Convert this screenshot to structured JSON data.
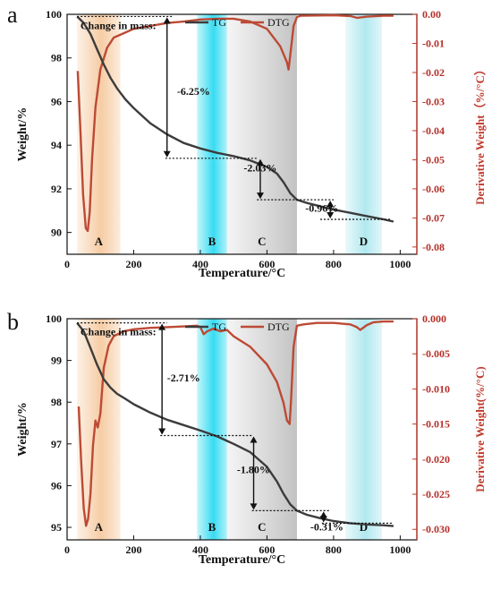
{
  "colors": {
    "tg": "#3c3c3c",
    "dtg": "#bd4a35",
    "right_axis": "#c0392b",
    "region_a": "#f5c79b",
    "region_b": "#21d8f0",
    "region_c": "#bcbcbc",
    "region_d": "#a9e6ee"
  },
  "chart_data": [
    {
      "type": "line",
      "panel_label": "a",
      "xlabel": "Temperature/°C",
      "ylabel": "Weight/%",
      "y2label": "Derivative Weight（%/°C）",
      "xlim": [
        0,
        1050
      ],
      "ylim": [
        89,
        100
      ],
      "y2lim": [
        -0.0825,
        0
      ],
      "x_ticks": [
        "0",
        "200",
        "400",
        "600",
        "800",
        "1000"
      ],
      "y_ticks": [
        "90",
        "92",
        "94",
        "96",
        "98",
        "100"
      ],
      "y2_ticks": [
        "0.00",
        "-0.01",
        "-0.02",
        "-0.03",
        "-0.04",
        "-0.05",
        "-0.06",
        "-0.07",
        "-0.08"
      ],
      "legend": {
        "tg": "TG",
        "dtg": "DTG"
      },
      "change_label": "Change in mass:",
      "regions": [
        {
          "label": "A",
          "from": 30,
          "to": 160
        },
        {
          "label": "B",
          "from": 390,
          "to": 480
        },
        {
          "label": "C",
          "from": 480,
          "to": 690
        },
        {
          "label": "D",
          "from": 835,
          "to": 945
        }
      ],
      "annotations": [
        {
          "text": "-6.25%",
          "x": 300,
          "from": 99.9,
          "to": 93.4,
          "line_x1": 295,
          "line_x2": 570,
          "tx": 330,
          "ty": 96.3
        },
        {
          "text": "-2.03%",
          "x": 580,
          "from": 93.4,
          "to": 91.5,
          "line_x1": 570,
          "line_x2": 800,
          "tx": 530,
          "ty": 92.8
        },
        {
          "text": "-0.96%",
          "x": 790,
          "from": 91.5,
          "to": 90.6,
          "line_x1": 760,
          "line_x2": 975,
          "tx": 715,
          "ty": 90.95
        }
      ],
      "tg": {
        "name": "TG",
        "x": [
          30,
          50,
          70,
          90,
          110,
          130,
          150,
          175,
          200,
          250,
          300,
          350,
          400,
          450,
          500,
          550,
          600,
          630,
          650,
          670,
          690,
          720,
          760,
          800,
          850,
          900,
          950,
          980
        ],
        "y": [
          99.9,
          99.6,
          99.1,
          98.4,
          97.7,
          97.1,
          96.6,
          96.1,
          95.7,
          95.0,
          94.5,
          94.1,
          93.85,
          93.65,
          93.5,
          93.3,
          93.0,
          92.7,
          92.3,
          91.8,
          91.5,
          91.35,
          91.2,
          91.05,
          90.9,
          90.75,
          90.6,
          90.5
        ]
      },
      "dtg": {
        "name": "DTG",
        "x": [
          32,
          40,
          48,
          56,
          62,
          68,
          75,
          85,
          100,
          120,
          140,
          170,
          200,
          250,
          300,
          350,
          400,
          450,
          500,
          550,
          600,
          620,
          640,
          660,
          665,
          670,
          680,
          690,
          700,
          750,
          800,
          850,
          870,
          900,
          950,
          980
        ],
        "y": [
          -0.0195,
          -0.04,
          -0.062,
          -0.0735,
          -0.0745,
          -0.068,
          -0.05,
          -0.032,
          -0.019,
          -0.0115,
          -0.008,
          -0.0065,
          -0.005,
          -0.004,
          -0.003,
          -0.0025,
          -0.0018,
          -0.0015,
          -0.0015,
          -0.0025,
          -0.005,
          -0.008,
          -0.011,
          -0.0165,
          -0.019,
          -0.014,
          -0.004,
          -0.001,
          -0.0005,
          -0.0004,
          -0.0003,
          -0.0006,
          -0.0012,
          -0.0008,
          -0.0005,
          -0.0005
        ]
      }
    },
    {
      "type": "line",
      "panel_label": "b",
      "xlabel": "Temperature/°C",
      "ylabel": "Weight/%",
      "y2label": "Derivative Weight(%/°C)",
      "xlim": [
        0,
        1050
      ],
      "ylim": [
        94.7,
        100
      ],
      "y2lim": [
        -0.0315,
        0
      ],
      "x_ticks": [
        "0",
        "200",
        "400",
        "600",
        "800",
        "1000"
      ],
      "y_ticks": [
        "95",
        "96",
        "97",
        "98",
        "99",
        "100"
      ],
      "y2_ticks": [
        "0.000",
        "-0.005",
        "-0.010",
        "-0.015",
        "-0.020",
        "-0.025",
        "-0.030"
      ],
      "legend": {
        "tg": "TG",
        "dtg": "DTG"
      },
      "change_label": "Change in mass:",
      "regions": [
        {
          "label": "A",
          "from": 30,
          "to": 160
        },
        {
          "label": "B",
          "from": 390,
          "to": 480
        },
        {
          "label": "C",
          "from": 480,
          "to": 690
        },
        {
          "label": "D",
          "from": 835,
          "to": 945
        }
      ],
      "annotations": [
        {
          "text": "-2.71%",
          "x": 285,
          "from": 99.9,
          "to": 97.2,
          "line_x1": 280,
          "line_x2": 555,
          "tx": 300,
          "ty": 98.5
        },
        {
          "text": "-1.80%",
          "x": 560,
          "from": 97.2,
          "to": 95.4,
          "line_x1": 555,
          "line_x2": 790,
          "tx": 510,
          "ty": 96.3
        },
        {
          "text": "-0.31%",
          "x": 770,
          "from": 95.4,
          "to": 95.1,
          "line_x1": 765,
          "line_x2": 975,
          "tx": 730,
          "ty": 94.93
        }
      ],
      "tg": {
        "name": "TG",
        "x": [
          30,
          50,
          70,
          90,
          110,
          130,
          150,
          175,
          200,
          250,
          300,
          350,
          400,
          450,
          500,
          550,
          600,
          630,
          650,
          670,
          690,
          720,
          760,
          800,
          850,
          900,
          950,
          980
        ],
        "y": [
          99.9,
          99.7,
          99.3,
          98.9,
          98.55,
          98.35,
          98.2,
          98.08,
          97.95,
          97.75,
          97.58,
          97.45,
          97.32,
          97.18,
          97.0,
          96.8,
          96.45,
          96.1,
          95.8,
          95.55,
          95.4,
          95.3,
          95.22,
          95.15,
          95.1,
          95.07,
          95.05,
          95.03
        ]
      },
      "dtg": {
        "name": "DTG",
        "x": [
          35,
          42,
          50,
          57,
          63,
          70,
          78,
          85,
          92,
          100,
          110,
          125,
          140,
          170,
          200,
          250,
          300,
          350,
          390,
          400,
          410,
          420,
          440,
          460,
          480,
          500,
          550,
          600,
          630,
          650,
          660,
          668,
          672,
          680,
          690,
          710,
          750,
          800,
          850,
          870,
          880,
          900,
          920,
          950,
          980
        ],
        "y": [
          -0.0125,
          -0.02,
          -0.027,
          -0.0295,
          -0.0285,
          -0.025,
          -0.018,
          -0.0145,
          -0.0155,
          -0.0135,
          -0.007,
          -0.0038,
          -0.0025,
          -0.0018,
          -0.0015,
          -0.0013,
          -0.0012,
          -0.0011,
          -0.001,
          -0.0012,
          -0.0022,
          -0.0018,
          -0.0014,
          -0.0018,
          -0.0016,
          -0.0025,
          -0.004,
          -0.0065,
          -0.009,
          -0.012,
          -0.0145,
          -0.015,
          -0.012,
          -0.004,
          -0.001,
          -0.0008,
          -0.0006,
          -0.0006,
          -0.0008,
          -0.0012,
          -0.0016,
          -0.0009,
          -0.0005,
          -0.0004,
          -0.0004
        ]
      }
    }
  ]
}
